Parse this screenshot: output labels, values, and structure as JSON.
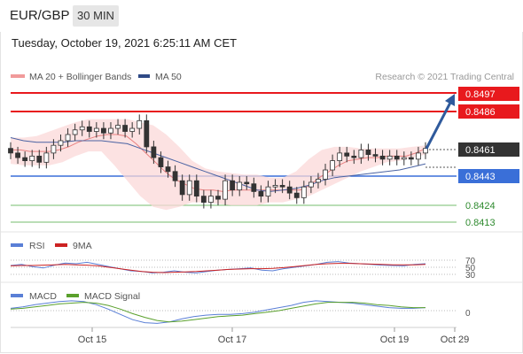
{
  "header": {
    "symbol": "EUR/GBP",
    "timeframe": "30 MIN"
  },
  "datetime": "Tuesday, October 19, 2021 6:25:11 AM CET",
  "copyright": "Research © 2021 Trading Central",
  "colors": {
    "resistance": "#e8191d",
    "support": "#3a6fd8",
    "target": "#48a83b",
    "arrow": "#2f5a9c",
    "ma50": "#4a63a3",
    "ma20": "#e88080",
    "bands": "#fbd8d8",
    "candle": "#333333",
    "rsi": "#5a7fd6",
    "rsi_ma": "#cc2222",
    "macd": "#5a7fd6",
    "macd_signal": "#5aa02c"
  },
  "chart_data": [
    {
      "type": "line",
      "panel": "price",
      "legend": [
        "MA 20 + Bollinger Bands",
        "MA 50"
      ],
      "x_ticks": [
        "Oct 15",
        "Oct 17",
        "Oct 19",
        "Oct 29"
      ],
      "levels": [
        {
          "label": "0.8497",
          "value": 0.8497,
          "kind": "resistance"
        },
        {
          "label": "0.8486",
          "value": 0.8486,
          "kind": "resistance"
        },
        {
          "label": "0.8461",
          "value": 0.8461,
          "kind": "last"
        },
        {
          "label": "0.8443",
          "value": 0.8443,
          "kind": "support"
        },
        {
          "label": "0.8424",
          "value": 0.8424,
          "kind": "target"
        },
        {
          "label": "0.8413",
          "value": 0.8413,
          "kind": "target"
        }
      ],
      "close": [
        0.8458,
        0.8455,
        0.8453,
        0.8456,
        0.8452,
        0.8458,
        0.8463,
        0.8466,
        0.847,
        0.8473,
        0.8475,
        0.8472,
        0.8474,
        0.8471,
        0.8474,
        0.8476,
        0.8472,
        0.8474,
        0.8479,
        0.8462,
        0.8455,
        0.8449,
        0.8446,
        0.844,
        0.8431,
        0.844,
        0.843,
        0.8426,
        0.843,
        0.8428,
        0.844,
        0.8434,
        0.8439,
        0.8438,
        0.8433,
        0.843,
        0.8436,
        0.8437,
        0.8436,
        0.8432,
        0.8429,
        0.8436,
        0.8439,
        0.8441,
        0.8447,
        0.8453,
        0.8458,
        0.8456,
        0.8455,
        0.846,
        0.8457,
        0.8456,
        0.8454,
        0.8456,
        0.8454,
        0.8455,
        0.8454,
        0.8458,
        0.8461
      ],
      "ma20": [
        0.846,
        0.846,
        0.8459,
        0.8459,
        0.8459,
        0.846,
        0.8462,
        0.8465,
        0.8467,
        0.8469,
        0.847,
        0.847,
        0.8469,
        0.8464,
        0.8458,
        0.8452,
        0.8446,
        0.8441,
        0.8438,
        0.8435,
        0.8434,
        0.8434,
        0.8433,
        0.8434,
        0.8434,
        0.8434,
        0.8434,
        0.8434,
        0.8434,
        0.8434,
        0.8434,
        0.8437,
        0.8442,
        0.8446,
        0.845,
        0.8453,
        0.8454,
        0.8455,
        0.8455,
        0.8456,
        0.8456,
        0.8456,
        0.8458,
        0.8461
      ],
      "bb_upper": [
        0.8468,
        0.8468,
        0.8469,
        0.8472,
        0.8475,
        0.8478,
        0.848,
        0.848,
        0.848,
        0.848,
        0.8478,
        0.8476,
        0.847,
        0.8462,
        0.8453,
        0.8448,
        0.8446,
        0.8445,
        0.8444,
        0.8444,
        0.8442,
        0.8442,
        0.8446,
        0.8454,
        0.846,
        0.8462,
        0.8462,
        0.8461,
        0.8461,
        0.8461,
        0.8461,
        0.8462,
        0.8463
      ],
      "bb_lower": [
        0.8451,
        0.845,
        0.845,
        0.845,
        0.8452,
        0.8456,
        0.8459,
        0.8459,
        0.845,
        0.844,
        0.843,
        0.8423,
        0.8421,
        0.8423,
        0.8426,
        0.8426,
        0.8425,
        0.8424,
        0.8424,
        0.8424,
        0.8426,
        0.8426,
        0.8428,
        0.843,
        0.8434,
        0.8438,
        0.8442,
        0.8446,
        0.8449,
        0.8452,
        0.8453,
        0.8455,
        0.8457
      ],
      "ma50": [
        0.8468,
        0.8466,
        0.8465,
        0.8465,
        0.8465,
        0.8466,
        0.8466,
        0.8466,
        0.8465,
        0.8464,
        0.8461,
        0.8458,
        0.8455,
        0.8452,
        0.8449,
        0.8446,
        0.8443,
        0.844,
        0.8437,
        0.8434,
        0.8433,
        0.8434,
        0.8435,
        0.8437,
        0.844,
        0.8442,
        0.8443,
        0.8444,
        0.8445,
        0.8446,
        0.8447,
        0.8449,
        0.8451
      ],
      "forecast_target": 0.8497
    },
    {
      "type": "line",
      "panel": "rsi",
      "legend": [
        "RSI",
        "9MA"
      ],
      "ticks": [
        "70",
        "50",
        "30"
      ],
      "rsi": [
        55,
        58,
        52,
        48,
        56,
        62,
        60,
        64,
        58,
        52,
        46,
        40,
        38,
        34,
        36,
        40,
        36,
        34,
        38,
        42,
        44,
        46,
        48,
        42,
        40,
        46,
        50,
        54,
        58,
        64,
        66,
        62,
        60,
        58,
        56,
        55,
        54,
        58,
        60
      ],
      "rsi_ma": [
        54,
        55,
        55,
        56,
        57,
        58,
        57,
        56,
        54,
        50,
        46,
        42,
        38,
        36,
        35,
        36,
        37,
        38,
        40,
        42,
        44,
        45,
        46,
        46,
        47,
        49,
        52,
        55,
        58,
        60,
        61,
        61,
        60,
        59,
        58,
        57,
        57,
        57,
        58
      ]
    },
    {
      "type": "line",
      "panel": "macd",
      "legend": [
        "MACD",
        "MACD Signal"
      ],
      "ticks": [
        "0"
      ],
      "macd": [
        0.0003,
        0.0005,
        0.0008,
        0.001,
        0.0012,
        0.0013,
        0.0012,
        0.0008,
        0.0002,
        -0.0005,
        -0.0012,
        -0.0016,
        -0.0017,
        -0.0015,
        -0.0011,
        -0.0008,
        -0.0006,
        -0.0005,
        -0.0005,
        -0.0004,
        -0.0002,
        0.0001,
        0.0004,
        0.0007,
        0.0011,
        0.0013,
        0.0012,
        0.0011,
        0.001,
        0.0008,
        0.0006,
        0.0004,
        0.0003,
        0.0003,
        0.0004
      ],
      "signal": [
        0.0002,
        0.0003,
        0.0005,
        0.0007,
        0.0009,
        0.001,
        0.0011,
        0.001,
        0.0007,
        0.0002,
        -0.0004,
        -0.0009,
        -0.0013,
        -0.0015,
        -0.0014,
        -0.0012,
        -0.001,
        -0.0008,
        -0.0007,
        -0.0006,
        -0.0004,
        -0.0002,
        0.0,
        0.0003,
        0.0006,
        0.0009,
        0.0011,
        0.0011,
        0.0011,
        0.001,
        0.0008,
        0.0007,
        0.0005,
        0.0004,
        0.0004
      ]
    }
  ]
}
